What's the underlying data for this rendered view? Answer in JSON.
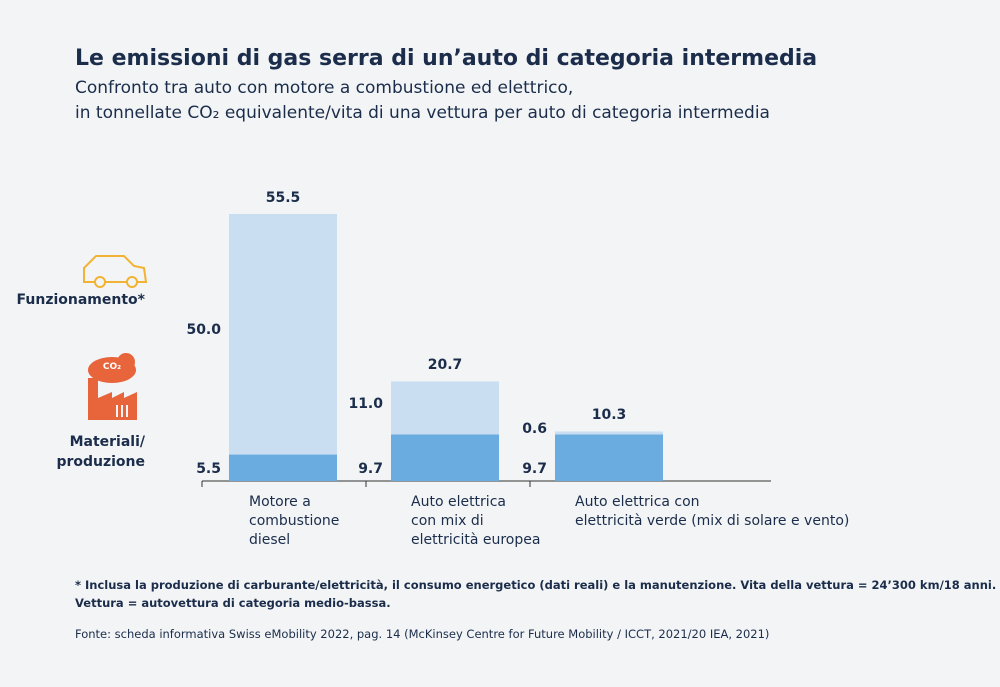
{
  "chart_data": {
    "type": "stacked_bar",
    "title": "Le emissioni di gas serra di un’auto di categoria intermedia",
    "subtitle": "Confronto tra auto con motore a combustione ed elettrico,\nin tonnellate CO₂ equivalente/vita di una vettura per auto di categoria intermedia",
    "categories": [
      "Motore a\ncombustione\ndiesel",
      "Auto elettrica\ncon mix di\nelettricità europea",
      "Auto elettrica con\nelettricità verde (mix di solare e vento)"
    ],
    "series": [
      {
        "name": "Materiali/\nproduzione",
        "color": "#6aace0",
        "values": [
          5.5,
          9.7,
          9.7
        ]
      },
      {
        "name": "Funzionamento*",
        "color": "#c9dff1",
        "values": [
          50,
          11,
          0.6
        ],
        "value_labels": [
          "50.0",
          "11.0",
          "0.6"
        ]
      }
    ],
    "totals": [
      55.5,
      20.7,
      10.3
    ],
    "icon_text": "CO₂",
    "footnote": "* Inclusa la produzione di carburante/elettricità, il consumo energetico (dati reali) e la manutenzione. Vita della vettura = 24’300 km/18 anni.\nVettura = autovettura di categoria medio-bassa.",
    "source": "Fonte: scheda informativa Swiss eMobility 2022, pag. 14 (McKinsey Centre for Future Mobility / ICCT, 2021/20 IEA, 2021)"
  }
}
